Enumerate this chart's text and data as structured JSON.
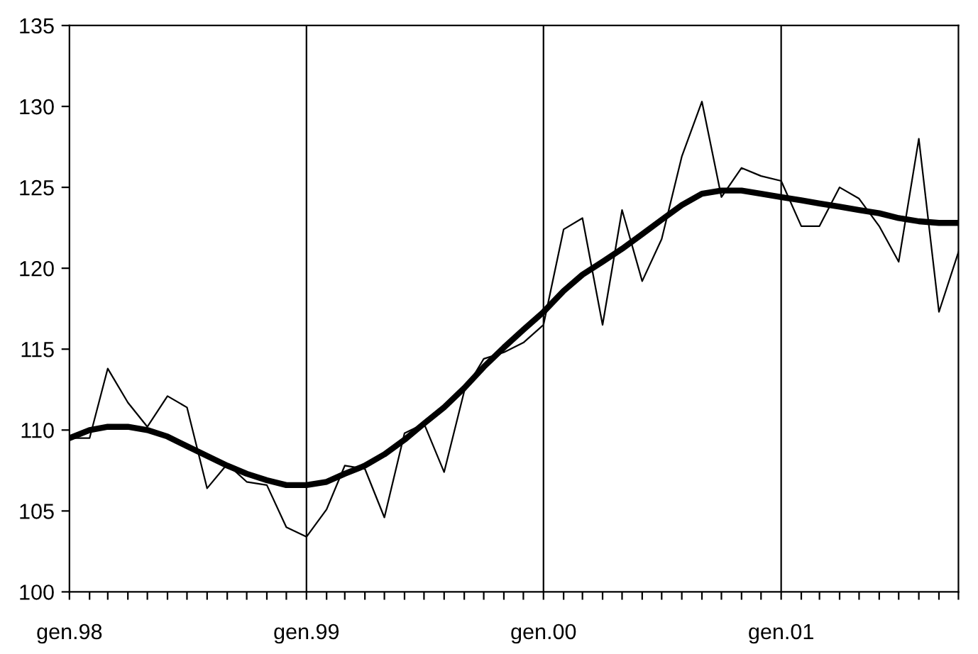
{
  "chart_data": {
    "type": "line",
    "x": [
      "1998-01",
      "1998-02",
      "1998-03",
      "1998-04",
      "1998-05",
      "1998-06",
      "1998-07",
      "1998-08",
      "1998-09",
      "1998-10",
      "1998-11",
      "1998-12",
      "1999-01",
      "1999-02",
      "1999-03",
      "1999-04",
      "1999-05",
      "1999-06",
      "1999-07",
      "1999-08",
      "1999-09",
      "1999-10",
      "1999-11",
      "1999-12",
      "2000-01",
      "2000-02",
      "2000-03",
      "2000-04",
      "2000-05",
      "2000-06",
      "2000-07",
      "2000-08",
      "2000-09",
      "2000-10",
      "2000-11",
      "2000-12",
      "2001-01",
      "2001-02",
      "2001-03",
      "2001-04",
      "2001-05",
      "2001-06",
      "2001-07",
      "2001-08",
      "2001-09",
      "2001-10"
    ],
    "series": [
      {
        "color": "#000000",
        "values": [
          109.5,
          109.5,
          113.8,
          111.7,
          110.2,
          112.1,
          111.4,
          106.4,
          107.9,
          106.8,
          106.6,
          104.0,
          103.4,
          105.1,
          107.8,
          107.6,
          104.6,
          109.8,
          110.4,
          107.4,
          112.4,
          114.4,
          114.8,
          115.4,
          116.5,
          122.4,
          123.1,
          116.5,
          123.6,
          119.2,
          121.8,
          126.9,
          130.3,
          124.4,
          126.2,
          125.7,
          125.4,
          122.6,
          122.6,
          125.0,
          124.3,
          122.6,
          120.4,
          128.0,
          117.3,
          121.0
        ]
      },
      {
        "color": "#000000",
        "values": [
          109.5,
          110.0,
          110.2,
          110.2,
          110.0,
          109.6,
          109.0,
          108.4,
          107.8,
          107.3,
          106.9,
          106.6,
          106.6,
          106.8,
          107.3,
          107.8,
          108.5,
          109.4,
          110.4,
          111.4,
          112.6,
          113.9,
          115.1,
          116.2,
          117.3,
          118.6,
          119.6,
          120.4,
          121.2,
          122.1,
          123.0,
          123.9,
          124.6,
          124.8,
          124.8,
          124.6,
          124.4,
          124.2,
          124.0,
          123.8,
          123.6,
          123.4,
          123.1,
          122.9,
          122.8,
          122.8
        ]
      }
    ],
    "xlim": [
      "1998-01",
      "2001-10"
    ],
    "xticks": [
      {
        "value": "1998-01",
        "label": "gen.98"
      },
      {
        "value": "1998-02",
        "label": null
      },
      {
        "value": "1998-03",
        "label": null
      },
      {
        "value": "1998-04",
        "label": null
      },
      {
        "value": "1998-05",
        "label": null
      },
      {
        "value": "1998-06",
        "label": null
      },
      {
        "value": "1998-07",
        "label": null
      },
      {
        "value": "1998-08",
        "label": null
      },
      {
        "value": "1998-09",
        "label": null
      },
      {
        "value": "1998-10",
        "label": null
      },
      {
        "value": "1998-11",
        "label": null
      },
      {
        "value": "1998-12",
        "label": null
      },
      {
        "value": "1999-01",
        "label": "gen.99"
      },
      {
        "value": "1999-02",
        "label": null
      },
      {
        "value": "1999-03",
        "label": null
      },
      {
        "value": "1999-04",
        "label": null
      },
      {
        "value": "1999-05",
        "label": null
      },
      {
        "value": "1999-06",
        "label": null
      },
      {
        "value": "1999-07",
        "label": null
      },
      {
        "value": "1999-08",
        "label": null
      },
      {
        "value": "1999-09",
        "label": null
      },
      {
        "value": "1999-10",
        "label": null
      },
      {
        "value": "1999-11",
        "label": null
      },
      {
        "value": "1999-12",
        "label": null
      },
      {
        "value": "2000-01",
        "label": "gen.00"
      },
      {
        "value": "2000-02",
        "label": null
      },
      {
        "value": "2000-03",
        "label": null
      },
      {
        "value": "2000-04",
        "label": null
      },
      {
        "value": "2000-05",
        "label": null
      },
      {
        "value": "2000-06",
        "label": null
      },
      {
        "value": "2000-07",
        "label": null
      },
      {
        "value": "2000-08",
        "label": null
      },
      {
        "value": "2000-09",
        "label": null
      },
      {
        "value": "2000-10",
        "label": null
      },
      {
        "value": "2000-11",
        "label": null
      },
      {
        "value": "2000-12",
        "label": null
      },
      {
        "value": "2001-01",
        "label": "gen.01"
      },
      {
        "value": "2001-02",
        "label": null
      },
      {
        "value": "2001-03",
        "label": null
      },
      {
        "value": "2001-04",
        "label": null
      },
      {
        "value": "2001-05",
        "label": null
      },
      {
        "value": "2001-06",
        "label": null
      },
      {
        "value": "2001-07",
        "label": null
      },
      {
        "value": "2001-08",
        "label": null
      },
      {
        "value": "2001-09",
        "label": null
      },
      {
        "value": "2001-10",
        "label": null
      }
    ],
    "ylim": [
      100,
      135
    ],
    "yticks": [
      100,
      105,
      110,
      115,
      120,
      125,
      130,
      135
    ],
    "ref_lines": [
      {
        "axis": "x",
        "value": "1999-01",
        "color": "#000000"
      },
      {
        "axis": "x",
        "value": "2000-01",
        "color": "#000000"
      },
      {
        "axis": "x",
        "value": "2001-01",
        "color": "#000000"
      }
    ],
    "grid": false,
    "legend": false,
    "marker": "none",
    "line_style": "solid"
  }
}
